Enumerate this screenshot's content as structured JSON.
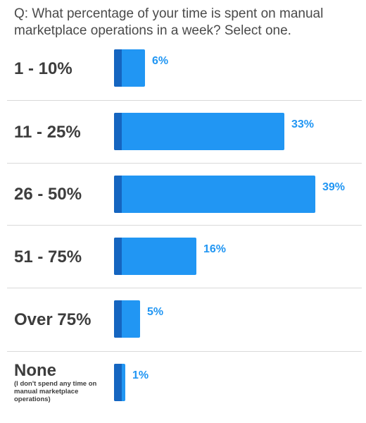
{
  "question": "Q: What percentage of your time is spent on manual marketplace operations in a week? Select one.",
  "colors": {
    "bar": "#2196f3",
    "bar_edge": "#1565c0",
    "value_text": "#2196f3"
  },
  "chart_data": {
    "type": "bar",
    "orientation": "horizontal",
    "title": "Q: What percentage of your time is spent on manual marketplace operations in a week? Select one.",
    "categories": [
      "1 - 10%",
      "11 - 25%",
      "26 - 50%",
      "51 - 75%",
      "Over 75%",
      "None"
    ],
    "category_notes": [
      "",
      "",
      "",
      "",
      "",
      "(I don't spend any time on manual marketplace operations)"
    ],
    "values": [
      6,
      33,
      39,
      16,
      5,
      1
    ],
    "value_labels": [
      "6%",
      "33%",
      "39%",
      "16%",
      "5%",
      "1%"
    ],
    "xlim": [
      0,
      39
    ],
    "grid": false,
    "legend": "none"
  }
}
